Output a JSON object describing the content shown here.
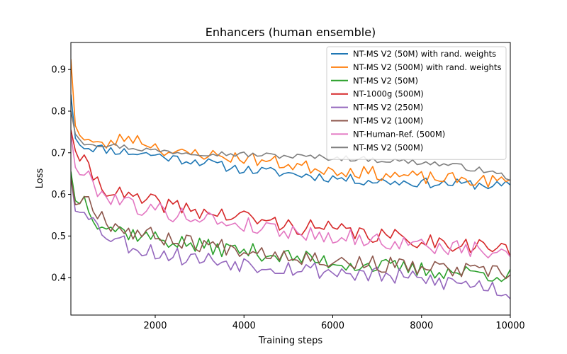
{
  "chart_data": {
    "type": "line",
    "title": "Enhancers (human ensemble)",
    "xlabel": "Training steps",
    "ylabel": "Loss",
    "xlim": [
      100,
      10000
    ],
    "ylim": [
      0.31,
      0.965
    ],
    "xticks": [
      2000,
      4000,
      6000,
      8000,
      10000
    ],
    "xtick_labels": [
      "2000",
      "4000",
      "6000",
      "8000",
      "10000"
    ],
    "yticks": [
      0.4,
      0.5,
      0.6,
      0.7,
      0.8,
      0.9
    ],
    "ytick_labels": [
      "0.4",
      "0.5",
      "0.6",
      "0.7",
      "0.8",
      "0.9"
    ],
    "grid": false,
    "legend_position": "top-right",
    "x_step": 100,
    "series": [
      {
        "name": "NT-MS V2 (50M) with rand. weights",
        "color": "#1f77b4",
        "anchors": [
          [
            100,
            0.84
          ],
          [
            200,
            0.735
          ],
          [
            400,
            0.715
          ],
          [
            800,
            0.71
          ],
          [
            1500,
            0.7
          ],
          [
            2000,
            0.695
          ],
          [
            2500,
            0.685
          ],
          [
            3000,
            0.68
          ],
          [
            3500,
            0.668
          ],
          [
            4000,
            0.66
          ],
          [
            4500,
            0.655
          ],
          [
            5000,
            0.65
          ],
          [
            5500,
            0.645
          ],
          [
            6000,
            0.64
          ],
          [
            6500,
            0.635
          ],
          [
            7000,
            0.632
          ],
          [
            7500,
            0.63
          ],
          [
            8000,
            0.628
          ],
          [
            8500,
            0.626
          ],
          [
            9000,
            0.625
          ],
          [
            9500,
            0.622
          ],
          [
            10000,
            0.62
          ]
        ],
        "noise": 0.012,
        "seed": 11
      },
      {
        "name": "NT-MS V2 (500M) with rand. weights",
        "color": "#ff7f0e",
        "anchors": [
          [
            100,
            0.925
          ],
          [
            200,
            0.765
          ],
          [
            400,
            0.735
          ],
          [
            800,
            0.715
          ],
          [
            1400,
            0.74
          ],
          [
            1800,
            0.725
          ],
          [
            2500,
            0.695
          ],
          [
            3000,
            0.7
          ],
          [
            3500,
            0.69
          ],
          [
            4000,
            0.688
          ],
          [
            4500,
            0.68
          ],
          [
            5000,
            0.672
          ],
          [
            5500,
            0.665
          ],
          [
            6000,
            0.66
          ],
          [
            6500,
            0.655
          ],
          [
            7000,
            0.65
          ],
          [
            7500,
            0.645
          ],
          [
            8000,
            0.64
          ],
          [
            8500,
            0.637
          ],
          [
            9000,
            0.635
          ],
          [
            9500,
            0.632
          ],
          [
            10000,
            0.63
          ]
        ],
        "noise": 0.016,
        "seed": 23
      },
      {
        "name": "NT-MS V2 (50M)",
        "color": "#2ca02c",
        "anchors": [
          [
            100,
            0.655
          ],
          [
            200,
            0.585
          ],
          [
            400,
            0.59
          ],
          [
            700,
            0.535
          ],
          [
            1000,
            0.52
          ],
          [
            1500,
            0.505
          ],
          [
            2000,
            0.495
          ],
          [
            2500,
            0.485
          ],
          [
            3000,
            0.475
          ],
          [
            3500,
            0.47
          ],
          [
            4000,
            0.465
          ],
          [
            4500,
            0.458
          ],
          [
            5000,
            0.45
          ],
          [
            5500,
            0.443
          ],
          [
            6000,
            0.437
          ],
          [
            6500,
            0.432
          ],
          [
            7000,
            0.427
          ],
          [
            7500,
            0.423
          ],
          [
            8000,
            0.418
          ],
          [
            8500,
            0.415
          ],
          [
            9000,
            0.412
          ],
          [
            9500,
            0.41
          ],
          [
            10000,
            0.405
          ]
        ],
        "noise": 0.02,
        "seed": 37
      },
      {
        "name": "NT-1000g (500M)",
        "color": "#d62728",
        "anchors": [
          [
            100,
            0.755
          ],
          [
            200,
            0.705
          ],
          [
            500,
            0.66
          ],
          [
            800,
            0.62
          ],
          [
            1200,
            0.6
          ],
          [
            1600,
            0.585
          ],
          [
            2000,
            0.58
          ],
          [
            2500,
            0.57
          ],
          [
            3000,
            0.56
          ],
          [
            3500,
            0.55
          ],
          [
            4000,
            0.545
          ],
          [
            4500,
            0.535
          ],
          [
            5000,
            0.525
          ],
          [
            5500,
            0.52
          ],
          [
            6000,
            0.515
          ],
          [
            6500,
            0.508
          ],
          [
            7000,
            0.5
          ],
          [
            7500,
            0.495
          ],
          [
            8000,
            0.49
          ],
          [
            8500,
            0.485
          ],
          [
            9000,
            0.48
          ],
          [
            9500,
            0.475
          ],
          [
            10000,
            0.462
          ]
        ],
        "noise": 0.02,
        "seed": 41
      },
      {
        "name": "NT-MS V2 (250M)",
        "color": "#9467bd",
        "anchors": [
          [
            100,
            0.64
          ],
          [
            200,
            0.56
          ],
          [
            400,
            0.575
          ],
          [
            700,
            0.52
          ],
          [
            1000,
            0.5
          ],
          [
            1500,
            0.475
          ],
          [
            2000,
            0.462
          ],
          [
            2500,
            0.452
          ],
          [
            3000,
            0.445
          ],
          [
            3500,
            0.44
          ],
          [
            4000,
            0.435
          ],
          [
            4500,
            0.43
          ],
          [
            5000,
            0.425
          ],
          [
            5500,
            0.42
          ],
          [
            6000,
            0.415
          ],
          [
            6500,
            0.41
          ],
          [
            7000,
            0.405
          ],
          [
            7500,
            0.4
          ],
          [
            8000,
            0.395
          ],
          [
            8500,
            0.39
          ],
          [
            9000,
            0.385
          ],
          [
            9500,
            0.38
          ],
          [
            10000,
            0.36
          ]
        ],
        "noise": 0.022,
        "seed": 53
      },
      {
        "name": "NT-MS V2 (100M)",
        "color": "#8c564b",
        "anchors": [
          [
            100,
            0.64
          ],
          [
            200,
            0.575
          ],
          [
            400,
            0.6
          ],
          [
            700,
            0.56
          ],
          [
            1000,
            0.53
          ],
          [
            1500,
            0.51
          ],
          [
            2000,
            0.5
          ],
          [
            2500,
            0.49
          ],
          [
            3000,
            0.482
          ],
          [
            3500,
            0.475
          ],
          [
            4000,
            0.47
          ],
          [
            4500,
            0.463
          ],
          [
            5000,
            0.455
          ],
          [
            5500,
            0.448
          ],
          [
            6000,
            0.442
          ],
          [
            6500,
            0.437
          ],
          [
            7000,
            0.432
          ],
          [
            7500,
            0.428
          ],
          [
            8000,
            0.423
          ],
          [
            8500,
            0.42
          ],
          [
            9000,
            0.416
          ],
          [
            9500,
            0.412
          ],
          [
            10000,
            0.408
          ]
        ],
        "noise": 0.02,
        "seed": 67
      },
      {
        "name": "NT-Human-Ref. (500M)",
        "color": "#e377c2",
        "anchors": [
          [
            100,
            0.745
          ],
          [
            200,
            0.665
          ],
          [
            500,
            0.64
          ],
          [
            800,
            0.6
          ],
          [
            1200,
            0.59
          ],
          [
            1600,
            0.57
          ],
          [
            2000,
            0.562
          ],
          [
            2500,
            0.552
          ],
          [
            3000,
            0.545
          ],
          [
            3500,
            0.535
          ],
          [
            4000,
            0.527
          ],
          [
            4500,
            0.52
          ],
          [
            5000,
            0.512
          ],
          [
            5500,
            0.505
          ],
          [
            6000,
            0.5
          ],
          [
            6500,
            0.495
          ],
          [
            7000,
            0.488
          ],
          [
            7500,
            0.483
          ],
          [
            8000,
            0.478
          ],
          [
            8500,
            0.472
          ],
          [
            9000,
            0.468
          ],
          [
            9500,
            0.462
          ],
          [
            10000,
            0.45
          ]
        ],
        "noise": 0.02,
        "seed": 79
      },
      {
        "name": "NT-MS V2 (500M)",
        "color": "#7f7f7f",
        "anchors": [
          [
            100,
            0.8
          ],
          [
            200,
            0.745
          ],
          [
            400,
            0.725
          ],
          [
            800,
            0.72
          ],
          [
            1500,
            0.712
          ],
          [
            2000,
            0.705
          ],
          [
            2500,
            0.702
          ],
          [
            3000,
            0.7
          ],
          [
            3500,
            0.698
          ],
          [
            4000,
            0.696
          ],
          [
            4500,
            0.694
          ],
          [
            5000,
            0.692
          ],
          [
            5500,
            0.69
          ],
          [
            6000,
            0.688
          ],
          [
            6500,
            0.686
          ],
          [
            7000,
            0.683
          ],
          [
            7500,
            0.68
          ],
          [
            8000,
            0.677
          ],
          [
            8500,
            0.672
          ],
          [
            9000,
            0.665
          ],
          [
            9500,
            0.655
          ],
          [
            10000,
            0.64
          ]
        ],
        "noise": 0.007,
        "seed": 97
      }
    ]
  }
}
